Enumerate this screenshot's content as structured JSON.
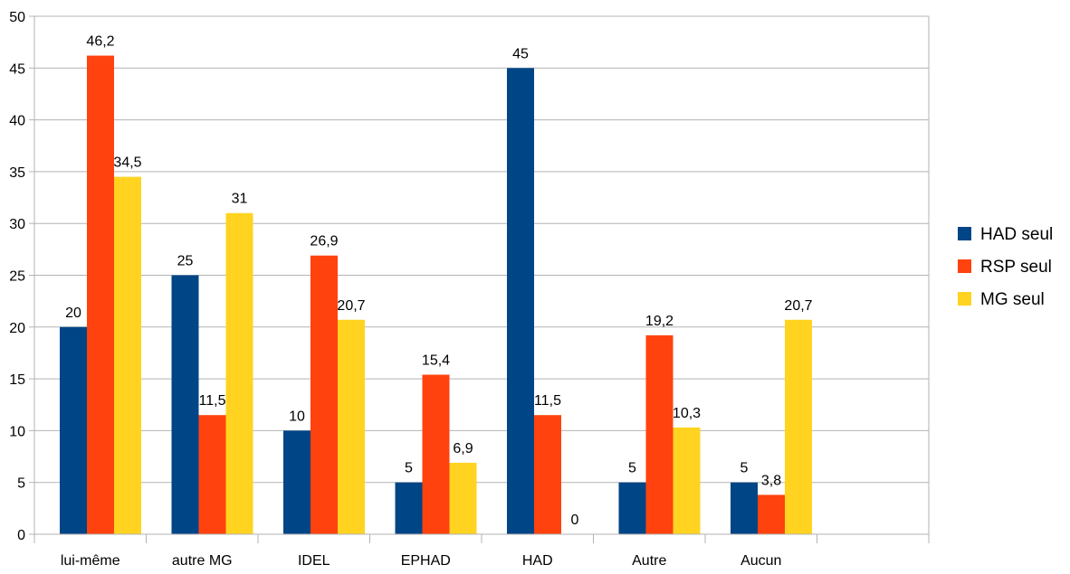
{
  "chart_data": {
    "type": "bar",
    "categories": [
      "lui-même",
      "autre MG",
      "IDEL",
      "EPHAD",
      "HAD",
      "Autre",
      "Aucun",
      ""
    ],
    "series": [
      {
        "name": "HAD seul",
        "color": "#004586",
        "values": [
          20,
          25,
          10,
          5,
          45,
          5,
          5,
          null
        ],
        "labels": [
          "20",
          "25",
          "10",
          "5",
          "45",
          "5",
          "5",
          ""
        ]
      },
      {
        "name": "RSP seul",
        "color": "#ff420e",
        "values": [
          46.2,
          11.5,
          26.9,
          15.4,
          11.5,
          19.2,
          3.8,
          null
        ],
        "labels": [
          "46,2",
          "11,5",
          "26,9",
          "15,4",
          "11,5",
          "19,2",
          "3,8",
          ""
        ]
      },
      {
        "name": "MG seul",
        "color": "#ffd320",
        "values": [
          34.5,
          31,
          20.7,
          6.9,
          0,
          10.3,
          20.7,
          null
        ],
        "labels": [
          "34,5",
          "31",
          "20,7",
          "6,9",
          "0",
          "10,3",
          "20,7",
          ""
        ]
      }
    ],
    "ylim": [
      0,
      50
    ],
    "yticks": [
      0,
      5,
      10,
      15,
      20,
      25,
      30,
      35,
      40,
      45,
      50
    ],
    "ytick_labels": [
      "0",
      "5",
      "10",
      "15",
      "20",
      "25",
      "30",
      "35",
      "40",
      "45",
      "50"
    ],
    "grid": true,
    "legend_position": "right",
    "title": "",
    "xlabel": "",
    "ylabel": ""
  }
}
